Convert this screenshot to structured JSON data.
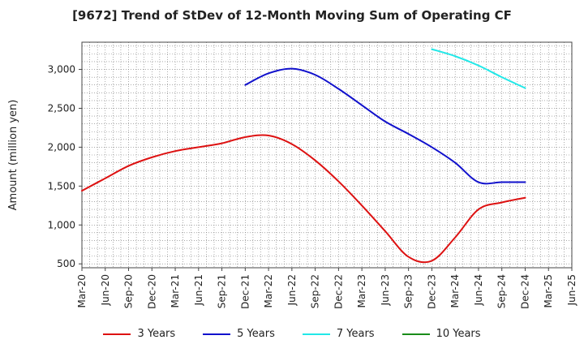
{
  "chart_data": {
    "type": "line",
    "title": "[9672]  Trend of StDev of 12-Month Moving Sum of Operating CF",
    "ylabel": "Amount (million yen)",
    "xlabel": "",
    "ylim": [
      450,
      3350
    ],
    "yticks": [
      500,
      1000,
      1500,
      2000,
      2500,
      3000
    ],
    "ytick_labels": [
      "500",
      "1,000",
      "1,500",
      "2,000",
      "2,500",
      "3,000"
    ],
    "grid": true,
    "legend_position": "bottom",
    "x_labels": [
      "Mar-20",
      "Jun-20",
      "Sep-20",
      "Dec-20",
      "Mar-21",
      "Jun-21",
      "Sep-21",
      "Dec-21",
      "Mar-22",
      "Jun-22",
      "Sep-22",
      "Dec-22",
      "Mar-23",
      "Jun-23",
      "Sep-23",
      "Dec-23",
      "Mar-24",
      "Jun-24",
      "Sep-24",
      "Dec-24",
      "Mar-25",
      "Jun-25"
    ],
    "series": [
      {
        "name": "3 Years",
        "color": "#dd1111",
        "values": [
          1440,
          1600,
          1760,
          1870,
          1950,
          2000,
          2050,
          2130,
          2150,
          2040,
          1830,
          1560,
          1250,
          920,
          590,
          540,
          840,
          1200,
          1290,
          1350,
          null,
          null
        ]
      },
      {
        "name": "5 Years",
        "color": "#1111cc",
        "values": [
          null,
          null,
          null,
          null,
          null,
          null,
          null,
          2800,
          2950,
          3010,
          2930,
          2750,
          2540,
          2330,
          2170,
          2000,
          1800,
          1550,
          1550,
          1550,
          null,
          null
        ]
      },
      {
        "name": "7 Years",
        "color": "#22e8e8",
        "values": [
          null,
          null,
          null,
          null,
          null,
          null,
          null,
          null,
          null,
          null,
          null,
          null,
          null,
          null,
          null,
          3260,
          3170,
          3050,
          2900,
          2760,
          null,
          null
        ]
      },
      {
        "name": "10 Years",
        "color": "#1a8c1a",
        "values": [
          null,
          null,
          null,
          null,
          null,
          null,
          null,
          null,
          null,
          null,
          null,
          null,
          null,
          null,
          null,
          null,
          null,
          null,
          null,
          null,
          null,
          null
        ]
      }
    ]
  }
}
